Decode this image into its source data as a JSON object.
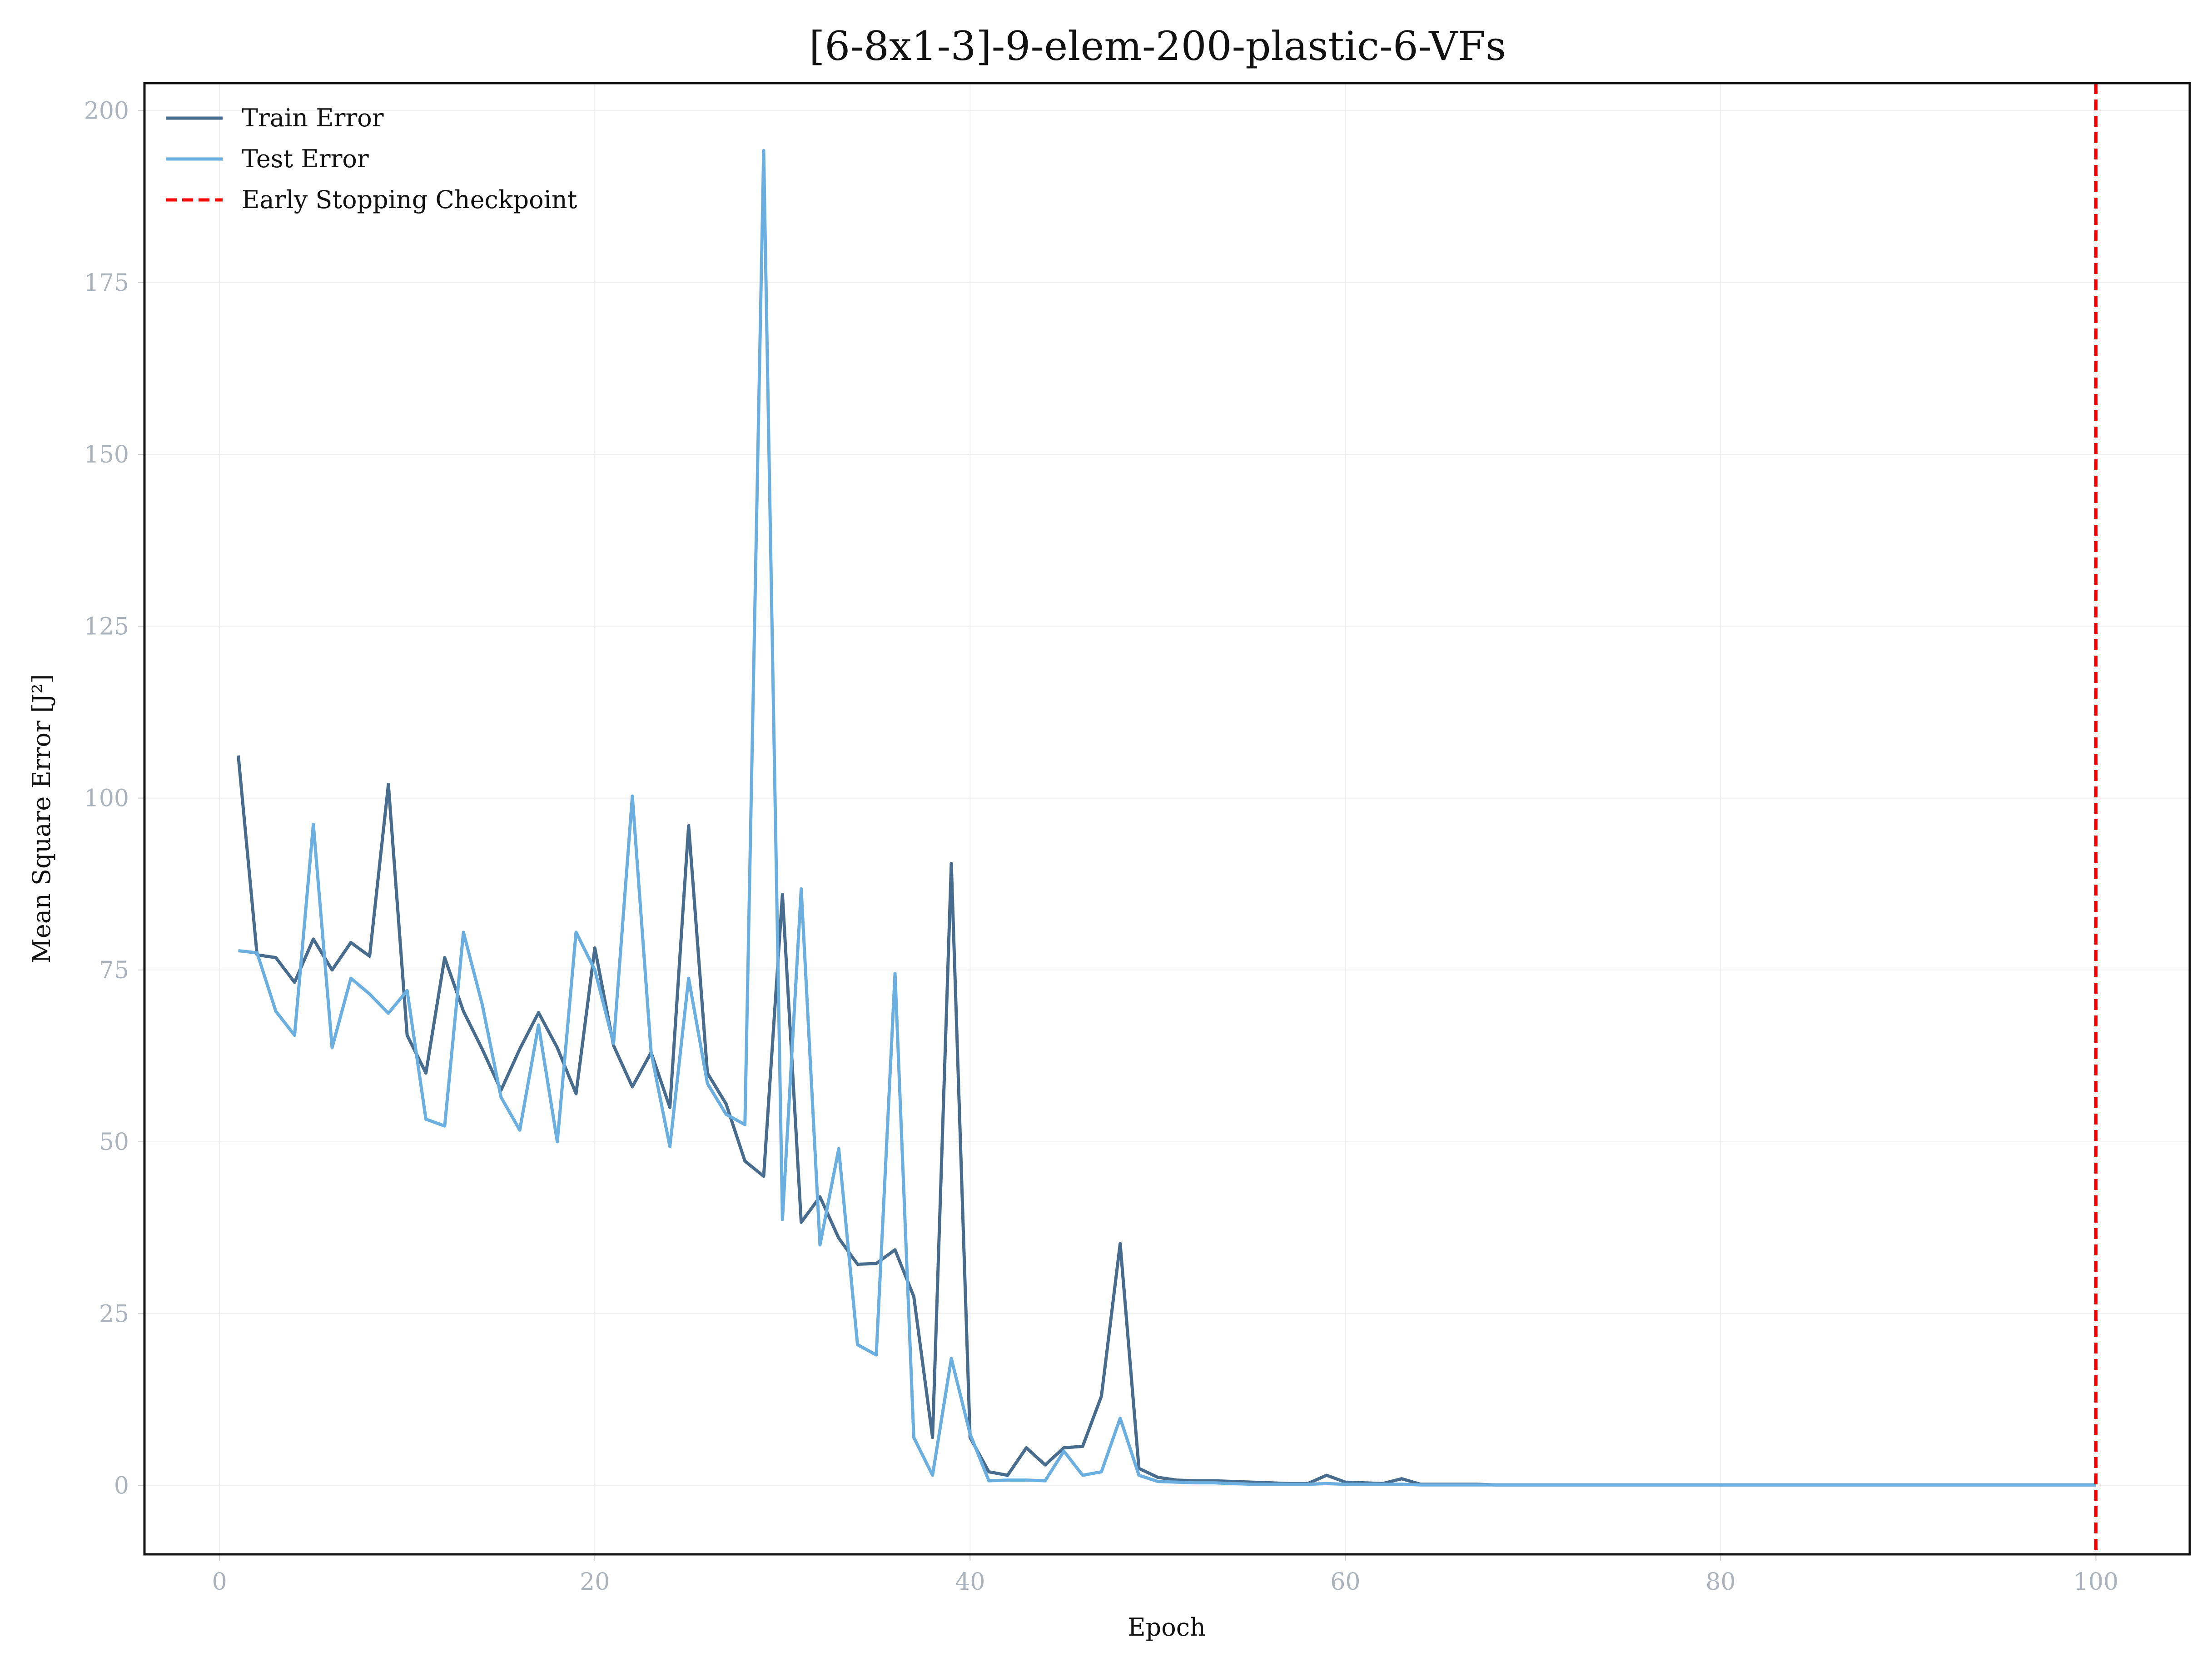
{
  "chart_data": {
    "type": "line",
    "title": "[6-8x1-3]-9-elem-200-plastic-6-VFs",
    "xlabel": "Epoch",
    "ylabel": "Mean Square Error [J²]",
    "xlim": [
      -4,
      105
    ],
    "ylim": [
      -10,
      204
    ],
    "xticks": [
      0,
      20,
      40,
      60,
      80,
      100
    ],
    "yticks": [
      0,
      25,
      50,
      75,
      100,
      125,
      150,
      175,
      200
    ],
    "grid": true,
    "legend_position": "top-left",
    "x": [
      1,
      2,
      3,
      4,
      5,
      6,
      7,
      8,
      9,
      10,
      11,
      12,
      13,
      14,
      15,
      16,
      17,
      18,
      19,
      20,
      21,
      22,
      23,
      24,
      25,
      26,
      27,
      28,
      29,
      30,
      31,
      32,
      33,
      34,
      35,
      36,
      37,
      38,
      39,
      40,
      41,
      42,
      43,
      44,
      45,
      46,
      47,
      48,
      49,
      50,
      51,
      52,
      53,
      54,
      55,
      56,
      57,
      58,
      59,
      60,
      61,
      62,
      63,
      64,
      65,
      66,
      67,
      68,
      69,
      70,
      71,
      72,
      73,
      74,
      75,
      76,
      77,
      78,
      79,
      80,
      81,
      82,
      83,
      84,
      85,
      86,
      87,
      88,
      89,
      90,
      91,
      92,
      93,
      94,
      95,
      96,
      97,
      98,
      99,
      100
    ],
    "series": [
      {
        "name": "Train Error",
        "color": "#476c8e",
        "values": [
          106.2,
          77.2,
          76.8,
          73.2,
          79.5,
          75.0,
          79.0,
          77.0,
          102.0,
          65.5,
          60.0,
          76.8,
          69.0,
          63.5,
          57.5,
          63.5,
          68.8,
          63.7,
          57.0,
          78.2,
          64.0,
          58.0,
          63.0,
          55.0,
          96.0,
          60.0,
          55.5,
          47.2,
          45.0,
          86.0,
          38.3,
          42.0,
          36.0,
          32.2,
          32.3,
          34.3,
          27.5,
          7.0,
          90.5,
          7.0,
          2.0,
          1.5,
          5.5,
          3.0,
          5.5,
          5.7,
          13.0,
          35.2,
          2.5,
          1.2,
          0.8,
          0.7,
          0.7,
          0.6,
          0.5,
          0.4,
          0.3,
          0.3,
          1.5,
          0.5,
          0.4,
          0.3,
          1.0,
          0.2,
          0.2,
          0.2,
          0.2,
          0.1,
          0.1,
          0.1,
          0.1,
          0.1,
          0.1,
          0.1,
          0.1,
          0.1,
          0.1,
          0.1,
          0.1,
          0.1,
          0.1,
          0.1,
          0.1,
          0.1,
          0.1,
          0.1,
          0.1,
          0.1,
          0.1,
          0.1,
          0.1,
          0.1,
          0.1,
          0.1,
          0.1,
          0.1,
          0.1,
          0.1,
          0.1,
          0.1
        ]
      },
      {
        "name": "Test Error",
        "color": "#6aafe0",
        "values": [
          77.8,
          77.5,
          69.0,
          65.5,
          96.2,
          63.7,
          73.8,
          71.5,
          68.7,
          72.0,
          53.3,
          52.3,
          80.5,
          70.0,
          56.5,
          51.7,
          67.0,
          50.0,
          80.5,
          75.0,
          64.3,
          100.3,
          63.0,
          49.3,
          73.8,
          58.5,
          54.0,
          52.5,
          194.2,
          38.7,
          86.8,
          35.0,
          49.0,
          20.5,
          19.0,
          74.5,
          7.0,
          1.5,
          18.5,
          7.5,
          0.7,
          0.8,
          0.8,
          0.7,
          5.0,
          1.5,
          2.0,
          9.8,
          1.5,
          0.6,
          0.5,
          0.4,
          0.4,
          0.3,
          0.2,
          0.2,
          0.2,
          0.2,
          0.3,
          0.2,
          0.2,
          0.2,
          0.2,
          0.1,
          0.1,
          0.1,
          0.1,
          0.1,
          0.1,
          0.1,
          0.1,
          0.1,
          0.1,
          0.1,
          0.1,
          0.1,
          0.1,
          0.1,
          0.1,
          0.1,
          0.1,
          0.1,
          0.1,
          0.1,
          0.1,
          0.1,
          0.1,
          0.1,
          0.1,
          0.1,
          0.1,
          0.1,
          0.1,
          0.1,
          0.1,
          0.1,
          0.1,
          0.1,
          0.1,
          0.1
        ]
      }
    ],
    "vlines": [
      {
        "name": "Early Stopping Checkpoint",
        "x": 100,
        "color": "#ff0000",
        "style": "dashed"
      }
    ]
  }
}
